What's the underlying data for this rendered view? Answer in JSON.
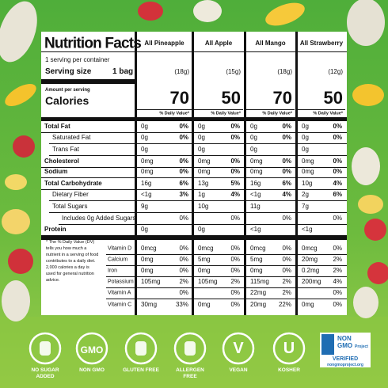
{
  "label": {
    "title": "Nutrition Facts",
    "servings": "1 serving per container",
    "serving_size_label": "Serving size",
    "serving_size": "1 bag",
    "amount_per_serving": "Amount per serving",
    "calories_label": "Calories",
    "daily_value_header": "% Daily Value*",
    "nutrients": [
      "Total Fat",
      "Saturated Fat",
      "Trans Fat",
      "Cholesterol",
      "Sodium",
      "Total Carbohydrate",
      "Dietary Fiber",
      "Total Sugars",
      "Includes 0g Added Sugars",
      "Protein"
    ],
    "vitamins": [
      "Vitamin D",
      "Calcium",
      "Iron",
      "Potassium",
      "Vitamin A",
      "Vitamin C"
    ],
    "footnote": "* The % Daily Value (DV) tells you how much a nutrient in a serving of food contributes to a daily diet. 2,000 calories a day is used for general nutrition advice."
  },
  "products": [
    {
      "name": "All Pineapple",
      "serving": "(18g)",
      "calories": 70,
      "cells": [
        {
          "amount": "0g",
          "dv": "0%"
        },
        {
          "amount": "0g",
          "dv": "0%"
        },
        {
          "amount": "0g"
        },
        {
          "amount": "0mg",
          "dv": "0%"
        },
        {
          "amount": "0mg",
          "dv": "0%"
        },
        {
          "amount": "16g",
          "dv": "6%"
        },
        {
          "amount": "<1g",
          "dv": "3%"
        },
        {
          "amount": "9g"
        },
        {
          "dv": "0%"
        },
        {
          "amount": "0g"
        }
      ],
      "vitamins": [
        {
          "amount": "0mcg",
          "dv": "0%"
        },
        {
          "amount": "0mg",
          "dv": "0%"
        },
        {
          "amount": "0mg",
          "dv": "0%"
        },
        {
          "amount": "105mg",
          "dv": "2%"
        },
        {
          "dv": "0%"
        },
        {
          "amount": "30mg",
          "dv": "33%"
        }
      ]
    },
    {
      "name": "All Apple",
      "serving": "(15g)",
      "calories": 50,
      "cells": [
        {
          "amount": "0g",
          "dv": "0%"
        },
        {
          "amount": "0g",
          "dv": "0%"
        },
        {
          "amount": "0g"
        },
        {
          "amount": "0mg",
          "dv": "0%"
        },
        {
          "amount": "0mg",
          "dv": "0%"
        },
        {
          "amount": "13g",
          "dv": "5%"
        },
        {
          "amount": "1g",
          "dv": "4%"
        },
        {
          "amount": "10g"
        },
        {
          "dv": "0%"
        },
        {
          "amount": "0g"
        }
      ],
      "vitamins": [
        {
          "amount": "0mcg",
          "dv": "0%"
        },
        {
          "amount": "5mg",
          "dv": "0%"
        },
        {
          "amount": "0mg",
          "dv": "0%"
        },
        {
          "amount": "105mg",
          "dv": "2%"
        },
        {
          "dv": "0%"
        },
        {
          "amount": "0mg",
          "dv": "0%"
        }
      ]
    },
    {
      "name": "All Mango",
      "serving": "(18g)",
      "calories": 70,
      "cells": [
        {
          "amount": "0g",
          "dv": "0%"
        },
        {
          "amount": "0g",
          "dv": "0%"
        },
        {
          "amount": "0g"
        },
        {
          "amount": "0mg",
          "dv": "0%"
        },
        {
          "amount": "0mg",
          "dv": "0%"
        },
        {
          "amount": "16g",
          "dv": "6%"
        },
        {
          "amount": "<1g",
          "dv": "4%"
        },
        {
          "amount": "11g"
        },
        {
          "dv": "0%"
        },
        {
          "amount": "<1g"
        }
      ],
      "vitamins": [
        {
          "amount": "0mcg",
          "dv": "0%"
        },
        {
          "amount": "5mg",
          "dv": "0%"
        },
        {
          "amount": "0mg",
          "dv": "0%"
        },
        {
          "amount": "115mg",
          "dv": "2%"
        },
        {
          "amount": "22mg",
          "dv": "2%"
        },
        {
          "amount": "20mg",
          "dv": "22%"
        }
      ]
    },
    {
      "name": "All Strawberry",
      "serving": "(12g)",
      "calories": 50,
      "cells": [
        {
          "amount": "0g",
          "dv": "0%"
        },
        {
          "amount": "0g",
          "dv": "0%"
        },
        {
          "amount": "0g"
        },
        {
          "amount": "0mg",
          "dv": "0%"
        },
        {
          "amount": "0mg",
          "dv": "0%"
        },
        {
          "amount": "10g",
          "dv": "4%"
        },
        {
          "amount": "2g",
          "dv": "6%"
        },
        {
          "amount": "7g"
        },
        {
          "dv": "0%"
        },
        {
          "amount": "<1g"
        }
      ],
      "vitamins": [
        {
          "amount": "0mcg",
          "dv": "0%"
        },
        {
          "amount": "20mg",
          "dv": "2%"
        },
        {
          "amount": "0.2mg",
          "dv": "2%"
        },
        {
          "amount": "200mg",
          "dv": "4%"
        },
        {
          "dv": "0%"
        },
        {
          "amount": "0mg",
          "dv": "0%"
        }
      ]
    }
  ],
  "badges": [
    {
      "icon": "",
      "label": "NO SUGAR ADDED"
    },
    {
      "icon": "GMO",
      "label": "NON GMO"
    },
    {
      "icon": "",
      "label": "GLUTEN FREE"
    },
    {
      "icon": "",
      "label": "ALLERGEN FREE"
    },
    {
      "icon": "V",
      "label": "VEGAN"
    },
    {
      "icon": "U",
      "label": "KOSHER"
    }
  ],
  "verified": {
    "line1": "NON",
    "line2": "GMO",
    "line3": "Project",
    "line4": "VERIFIED",
    "url": "nongmoproject.org"
  }
}
